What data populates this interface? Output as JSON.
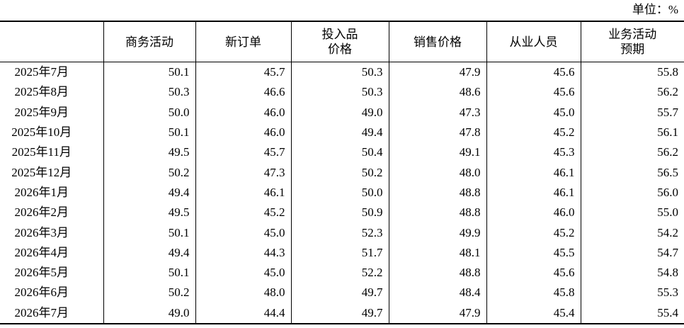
{
  "unit": "单位：%",
  "table": {
    "header": [
      [
        ""
      ],
      [
        "商务活动"
      ],
      [
        "新订单"
      ],
      [
        "投入品",
        "价格"
      ],
      [
        "销售价格"
      ],
      [
        "从业人员"
      ],
      [
        "业务活动",
        "预期"
      ]
    ],
    "rows": [
      [
        "2025年7月",
        "50.1",
        "45.7",
        "50.3",
        "47.9",
        "45.6",
        "55.8"
      ],
      [
        "2025年8月",
        "50.3",
        "46.6",
        "50.3",
        "48.6",
        "45.6",
        "56.2"
      ],
      [
        "2025年9月",
        "50.0",
        "46.0",
        "49.0",
        "47.3",
        "45.0",
        "55.7"
      ],
      [
        "2025年10月",
        "50.1",
        "46.0",
        "49.4",
        "47.8",
        "45.2",
        "56.1"
      ],
      [
        "2025年11月",
        "49.5",
        "45.7",
        "50.4",
        "49.1",
        "45.3",
        "56.2"
      ],
      [
        "2025年12月",
        "50.2",
        "47.3",
        "50.2",
        "48.0",
        "46.1",
        "56.5"
      ],
      [
        "2026年1月",
        "49.4",
        "46.1",
        "50.0",
        "48.8",
        "46.1",
        "56.0"
      ],
      [
        "2026年2月",
        "49.5",
        "45.2",
        "50.9",
        "48.8",
        "46.0",
        "55.0"
      ],
      [
        "2026年3月",
        "50.1",
        "45.0",
        "52.3",
        "49.9",
        "45.2",
        "54.2"
      ],
      [
        "2026年4月",
        "49.4",
        "44.3",
        "51.7",
        "48.1",
        "45.5",
        "54.7"
      ],
      [
        "2026年5月",
        "50.1",
        "45.0",
        "52.2",
        "48.8",
        "45.6",
        "54.8"
      ],
      [
        "2026年6月",
        "50.2",
        "48.0",
        "49.7",
        "48.4",
        "45.8",
        "55.3"
      ],
      [
        "2026年7月",
        "49.0",
        "44.4",
        "49.7",
        "47.9",
        "45.4",
        "55.4"
      ]
    ]
  }
}
